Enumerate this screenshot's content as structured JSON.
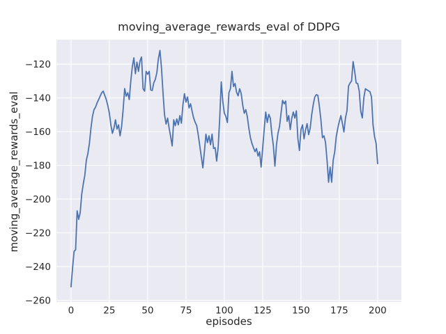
{
  "chart_data": {
    "type": "line",
    "title": "moving_average_rewards_eval of DDPG",
    "xlabel": "episodes",
    "ylabel": "moving_average_rewards_eval",
    "x_start": 0,
    "x_step": 1,
    "values": [
      -252,
      -241,
      -231,
      -230,
      -207,
      -212,
      -208,
      -197,
      -191,
      -186,
      -177,
      -173,
      -167,
      -158,
      -151,
      -147,
      -145.5,
      -143,
      -141,
      -139,
      -137,
      -136,
      -138.5,
      -141,
      -144.5,
      -149,
      -156,
      -161,
      -158,
      -153,
      -158.5,
      -156,
      -162.5,
      -157,
      -147,
      -134.5,
      -139,
      -137,
      -141,
      -130,
      -121.5,
      -116.3,
      -125.7,
      -118.8,
      -124.3,
      -118.1,
      -115.8,
      -134.6,
      -136,
      -124.3,
      -126,
      -124.3,
      -135.3,
      -135.6,
      -131,
      -129,
      -125,
      -116.7,
      -111.9,
      -122,
      -137,
      -150,
      -155.5,
      -152,
      -158,
      -163,
      -168.5,
      -153,
      -156.5,
      -152.5,
      -156,
      -150.5,
      -155,
      -144,
      -137.5,
      -142.5,
      -139.5,
      -146,
      -143.5,
      -148,
      -152,
      -154.5,
      -156.5,
      -162,
      -168.5,
      -175,
      -181.5,
      -172,
      -161.5,
      -166.5,
      -162.5,
      -167.8,
      -161.5,
      -170,
      -169.5,
      -177.5,
      -169,
      -152,
      -130.5,
      -142,
      -149,
      -151,
      -154.6,
      -137,
      -134.5,
      -124.3,
      -133.3,
      -131.5,
      -136.7,
      -138.8,
      -134.6,
      -137.4,
      -144.3,
      -149.1,
      -147,
      -151.2,
      -158,
      -163.5,
      -167,
      -169.5,
      -171.9,
      -170,
      -174.5,
      -172,
      -181,
      -170,
      -158.8,
      -148.4,
      -154.6,
      -149.8,
      -152,
      -161.5,
      -168.4,
      -180.5,
      -168,
      -161,
      -157,
      -149,
      -141.5,
      -143.5,
      -141.9,
      -153.9,
      -150.5,
      -158.8,
      -152,
      -148.4,
      -152,
      -147.7,
      -164.3,
      -171.2,
      -158.8,
      -156,
      -164.3,
      -159,
      -155.3,
      -161.8,
      -158,
      -150,
      -144,
      -139.5,
      -138.1,
      -138.5,
      -145,
      -153,
      -163.6,
      -162.5,
      -166.4,
      -177,
      -190,
      -181,
      -190,
      -177,
      -172,
      -163,
      -158,
      -154,
      -150.5,
      -155,
      -160.2,
      -152,
      -147.7,
      -133,
      -131.2,
      -130,
      -118.5,
      -124,
      -131.2,
      -131.5,
      -136,
      -148,
      -151.9,
      -140,
      -134.6,
      -135.2,
      -135.8,
      -136.4,
      -139.5,
      -156,
      -163,
      -167,
      -179
    ],
    "xticks": [
      0,
      25,
      50,
      75,
      100,
      125,
      150,
      175,
      200
    ],
    "xtick_labels": [
      "0",
      "25",
      "50",
      "75",
      "100",
      "125",
      "150",
      "175",
      "200"
    ],
    "yticks": [
      -120,
      -140,
      -160,
      -180,
      -200,
      -220,
      -240,
      -260
    ],
    "ytick_labels": [
      "−120",
      "−140",
      "−160",
      "−180",
      "−200",
      "−220",
      "−240",
      "−260"
    ],
    "xlim": [
      -9.5,
      215.5
    ],
    "ylim": [
      -261,
      -105.5
    ],
    "grid": true,
    "legend": "none",
    "line_color": "#4c72b0",
    "plot_bg_color": "#eaeaf2",
    "grid_color": "#ffffff",
    "text_color": "#262626",
    "figure_bg_color": "#ffffff"
  },
  "layout_note": "seaborn darkgrid style line plot"
}
